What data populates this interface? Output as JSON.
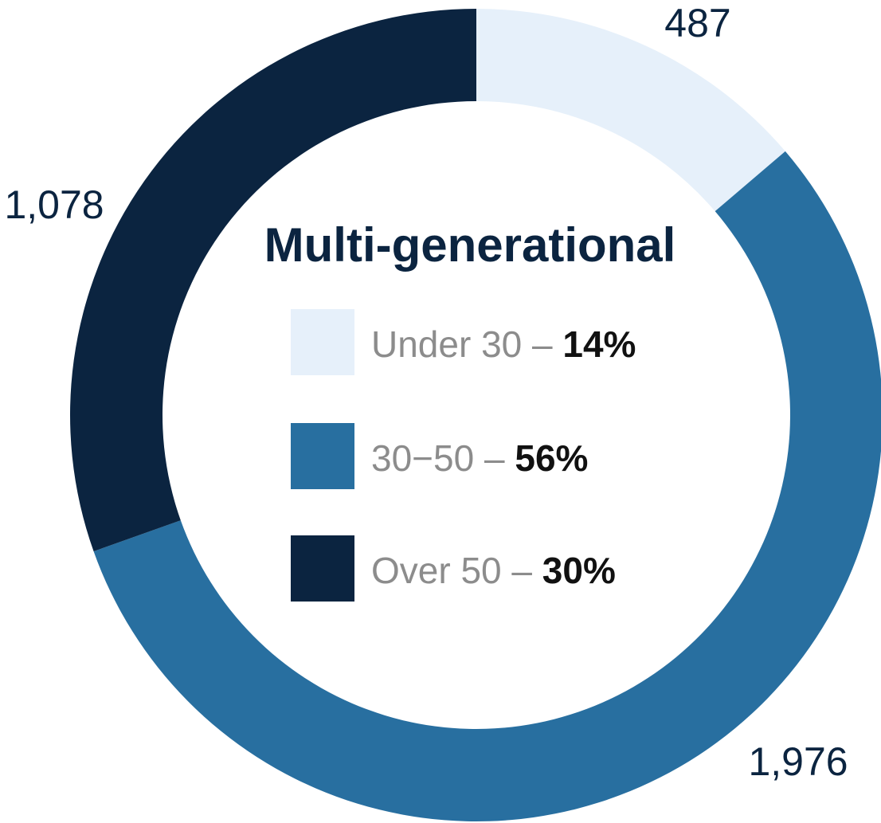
{
  "chart_data": {
    "type": "pie",
    "title": "Multi-generational",
    "categories": [
      "Under 30",
      "30−50",
      "Over 50"
    ],
    "values": [
      487,
      1976,
      1078
    ],
    "value_labels": [
      "487",
      "1,976",
      "1,078"
    ],
    "percent_labels": [
      "14%",
      "56%",
      "30%"
    ],
    "colors": [
      "#e6f0fa",
      "#286fa0",
      "#0b2440"
    ],
    "legend": {
      "placement": "center",
      "entries": [
        {
          "label": "Under 30",
          "separator": "–",
          "percent": "14%"
        },
        {
          "label": "30−50",
          "separator": "–",
          "percent": "56%"
        },
        {
          "label": "Over 50",
          "separator": "–",
          "percent": "30%"
        }
      ]
    }
  }
}
